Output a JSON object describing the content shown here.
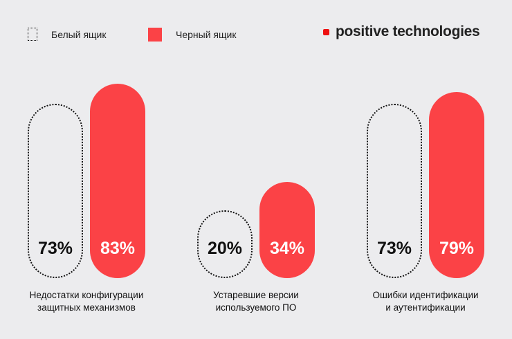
{
  "legend": [
    {
      "label": "Белый ящик",
      "type": "white"
    },
    {
      "label": "Черный ящик",
      "type": "black"
    }
  ],
  "logo": "positive technologies",
  "colors": {
    "red": "#fb4246",
    "background": "#ececee",
    "logo_dot": "#ee1111"
  },
  "chart_data": {
    "type": "bar",
    "categories": [
      [
        "Недостатки конфигурации",
        "защитных механизмов"
      ],
      [
        "Устаревшие версии",
        "используемого ПО"
      ],
      [
        "Ошибки идентификации",
        "и аутентификации"
      ]
    ],
    "series": [
      {
        "name": "Белый ящик",
        "values": [
          73,
          20,
          73
        ],
        "labels": [
          "73%",
          "20%",
          "73%"
        ]
      },
      {
        "name": "Черный ящик",
        "values": [
          83,
          34,
          79
        ],
        "labels": [
          "83%",
          "34%",
          "79%"
        ]
      }
    ],
    "unit": "%"
  }
}
